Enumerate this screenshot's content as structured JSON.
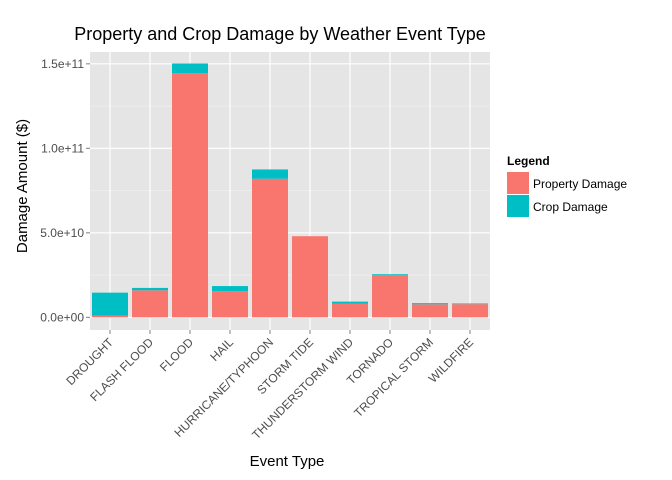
{
  "chart_data": {
    "type": "bar",
    "stacked": true,
    "title": "Property and Crop Damage by Weather Event Type",
    "xlabel": "Event Type",
    "ylabel": "Damage Amount ($)",
    "categories": [
      "DROUGHT",
      "FLASH FLOOD",
      "FLOOD",
      "HAIL",
      "HURRICANE/TYPHOON",
      "STORM TIDE",
      "THUNDERSTORM WIND",
      "TORNADO",
      "TROPICAL STORM",
      "WILDFIRE"
    ],
    "series": [
      {
        "name": "Property Damage",
        "color": "#F8766D",
        "values": [
          1000000000.0,
          16000000000.0,
          144500000000.0,
          15500000000.0,
          82000000000.0,
          48000000000.0,
          8000000000.0,
          25000000000.0,
          7700000000.0,
          7800000000.0
        ]
      },
      {
        "name": "Crop Damage",
        "color": "#00BFC4",
        "values": [
          13600000000.0,
          1400000000.0,
          5700000000.0,
          3000000000.0,
          5500000000.0,
          0.0,
          1300000000.0,
          500000000.0,
          700000000.0,
          400000000.0
        ]
      }
    ],
    "yticks": [
      0,
      50000000000.0,
      100000000000.0,
      150000000000.0
    ],
    "ytick_labels": [
      "0.0e+00",
      "5.0e+10",
      "1.0e+11",
      "1.5e+11"
    ],
    "ylim": [
      -7500000000.0,
      157000000000.0
    ],
    "grid": true,
    "legend": {
      "title": "Legend",
      "position": "right"
    }
  }
}
